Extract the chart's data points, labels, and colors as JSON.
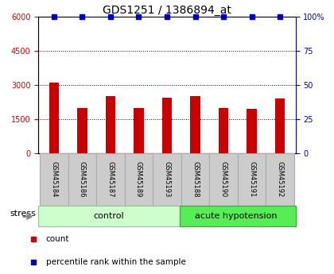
{
  "title": "GDS1251 / 1386894_at",
  "samples": [
    "GSM45184",
    "GSM45186",
    "GSM45187",
    "GSM45189",
    "GSM45193",
    "GSM45188",
    "GSM45190",
    "GSM45191",
    "GSM45192"
  ],
  "counts": [
    3100,
    2000,
    2500,
    2000,
    2450,
    2500,
    2000,
    1950,
    2400
  ],
  "percentiles": [
    100,
    100,
    100,
    100,
    100,
    100,
    100,
    100,
    100
  ],
  "bar_color": "#cc0000",
  "dot_color": "#0000cc",
  "left_ylim": [
    0,
    6000
  ],
  "right_ylim": [
    0,
    100
  ],
  "left_yticks": [
    0,
    1500,
    3000,
    4500,
    6000
  ],
  "right_yticks": [
    0,
    25,
    50,
    75,
    100
  ],
  "grid_values": [
    1500,
    3000,
    4500
  ],
  "n_control": 5,
  "n_stress": 4,
  "control_label": "control",
  "stress_label": "acute hypotension",
  "group_label": "stress",
  "legend_count_label": "count",
  "legend_pct_label": "percentile rank within the sample",
  "title_fontsize": 10,
  "tick_fontsize": 7,
  "axis_label_color_left": "#cc0000",
  "axis_label_color_right": "#0000cc",
  "bar_width": 0.35,
  "control_bg": "#ccffcc",
  "stress_bg": "#55ee55",
  "label_box_bg": "#cccccc",
  "label_box_edge": "#aaaaaa"
}
